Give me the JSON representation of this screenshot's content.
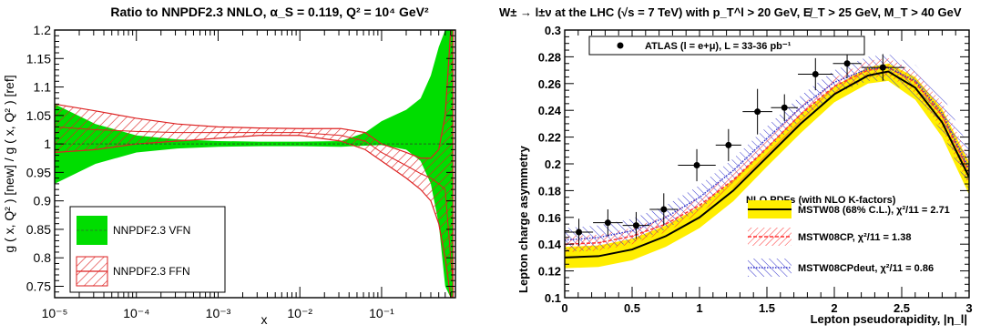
{
  "chart_data": [
    {
      "type": "line",
      "title": "Ratio to NNPDF2.3 NNLO, α_S = 0.119, Q² = 10⁴ GeV²",
      "xlabel": "x",
      "ylabel": "g ( x, Q² ) [new] / g ( x, Q² ) [ref]",
      "x_scale": "log",
      "xlim": [
        1e-05,
        0.8
      ],
      "ylim": [
        0.73,
        1.2
      ],
      "x_tick_labels": [
        {
          "v": 1e-05,
          "t": "10⁻⁵"
        },
        {
          "v": 0.0001,
          "t": "10⁻⁴"
        },
        {
          "v": 0.001,
          "t": "10⁻³"
        },
        {
          "v": 0.01,
          "t": "10⁻²"
        },
        {
          "v": 0.1,
          "t": "10⁻¹"
        }
      ],
      "y_tick_labels": [
        {
          "v": 0.75,
          "t": "0.75"
        },
        {
          "v": 0.8,
          "t": "0.8"
        },
        {
          "v": 0.85,
          "t": "0.85"
        },
        {
          "v": 0.9,
          "t": "0.9"
        },
        {
          "v": 0.95,
          "t": "0.95"
        },
        {
          "v": 1.0,
          "t": "1"
        },
        {
          "v": 1.05,
          "t": "1.05"
        },
        {
          "v": 1.1,
          "t": "1.1"
        },
        {
          "v": 1.15,
          "t": "1.15"
        },
        {
          "v": 1.2,
          "t": "1.2"
        }
      ],
      "legend_placement": "bottom-left",
      "series": [
        {
          "name": "NNPDF2.3 VFN",
          "style": "band",
          "color": "#00dd00",
          "x": [
            1e-05,
            3.16e-05,
            0.0001,
            0.000316,
            0.001,
            0.00316,
            0.01,
            0.0316,
            0.0631,
            0.1,
            0.2,
            0.3,
            0.4,
            0.5,
            0.6,
            0.7,
            0.75
          ],
          "lower": [
            0.93,
            0.965,
            0.985,
            0.992,
            0.995,
            0.996,
            0.996,
            0.995,
            0.997,
            0.998,
            0.99,
            0.97,
            0.93,
            0.86,
            0.75,
            0.73,
            0.73
          ],
          "upper": [
            1.07,
            1.035,
            1.015,
            1.008,
            1.005,
            1.004,
            1.004,
            1.005,
            1.02,
            1.04,
            1.06,
            1.08,
            1.12,
            1.17,
            1.2,
            1.2,
            1.2
          ],
          "central": [
            1.0,
            1.0,
            1.0,
            1.0,
            1.0,
            1.0,
            1.0,
            1.0,
            1.0,
            1.0,
            1.0,
            1.0,
            1.0,
            1.0,
            1.0,
            1.0,
            1.0
          ]
        },
        {
          "name": "NNPDF2.3 FFN",
          "style": "hatched-band",
          "color": "#dd2222",
          "x": [
            1e-05,
            3.16e-05,
            0.0001,
            0.000316,
            0.001,
            0.00316,
            0.01,
            0.0316,
            0.0631,
            0.1,
            0.2,
            0.3,
            0.4,
            0.5,
            0.6,
            0.7,
            0.75
          ],
          "lower": [
            0.985,
            0.99,
            1.0,
            1.005,
            1.01,
            1.015,
            1.015,
            1.005,
            0.99,
            0.97,
            0.94,
            0.92,
            0.9,
            0.86,
            0.8,
            0.73,
            0.73
          ],
          "upper": [
            1.07,
            1.058,
            1.045,
            1.035,
            1.03,
            1.028,
            1.027,
            1.027,
            1.02,
            1.0,
            0.985,
            0.975,
            0.975,
            0.99,
            1.05,
            1.2,
            1.2
          ],
          "central": [
            1.03,
            1.025,
            1.022,
            1.02,
            1.02,
            1.02,
            1.02,
            1.015,
            1.005,
            0.985,
            0.962,
            0.948,
            0.94,
            0.93,
            0.92,
            0.8,
            0.76
          ]
        }
      ]
    },
    {
      "type": "line",
      "title": "W± → l±ν at the LHC (√s = 7 TeV) with p_T^l > 20 GeV, E̸_T > 25 GeV, M_T > 40 GeV",
      "xlabel": "Lepton pseudorapidity, |η_l|",
      "ylabel": "Lepton charge asymmetry",
      "xlim": [
        0,
        3
      ],
      "ylim": [
        0.1,
        0.3
      ],
      "x_tick_labels": [
        {
          "v": 0,
          "t": "0"
        },
        {
          "v": 0.5,
          "t": "0.5"
        },
        {
          "v": 1,
          "t": "1"
        },
        {
          "v": 1.5,
          "t": "1.5"
        },
        {
          "v": 2,
          "t": "2"
        },
        {
          "v": 2.5,
          "t": "2.5"
        },
        {
          "v": 3,
          "t": "3"
        }
      ],
      "y_tick_labels": [
        {
          "v": 0.1,
          "t": "0.1"
        },
        {
          "v": 0.12,
          "t": "0.12"
        },
        {
          "v": 0.14,
          "t": "0.14"
        },
        {
          "v": 0.16,
          "t": "0.16"
        },
        {
          "v": 0.18,
          "t": "0.18"
        },
        {
          "v": 0.2,
          "t": "0.2"
        },
        {
          "v": 0.22,
          "t": "0.22"
        },
        {
          "v": 0.24,
          "t": "0.24"
        },
        {
          "v": 0.26,
          "t": "0.26"
        },
        {
          "v": 0.28,
          "t": "0.28"
        },
        {
          "v": 0.3,
          "t": "0.3"
        }
      ],
      "legend_top": "ATLAS (l = e+μ), L = 33-36 pb⁻¹",
      "legend_header": "NLO PDFs (with NLO K-factors)",
      "points": {
        "name": "ATLAS (l = e+μ), L = 33-36 pb⁻¹",
        "x": [
          0.105,
          0.32,
          0.53,
          0.735,
          0.98,
          1.215,
          1.43,
          1.63,
          1.86,
          2.095,
          2.36
        ],
        "xerr": [
          0.105,
          0.11,
          0.1,
          0.105,
          0.14,
          0.095,
          0.11,
          0.1,
          0.13,
          0.105,
          0.16
        ],
        "y": [
          0.149,
          0.156,
          0.154,
          0.166,
          0.199,
          0.214,
          0.239,
          0.242,
          0.267,
          0.275,
          0.272
        ],
        "yerr": [
          0.01,
          0.01,
          0.01,
          0.012,
          0.012,
          0.012,
          0.017,
          0.01,
          0.012,
          0.011,
          0.01
        ]
      },
      "series": [
        {
          "name": "MSTW08 (68% C.L.), χ²/11 = 2.71",
          "style": "band-line",
          "color": "#ffee00",
          "line_color": "#000000",
          "x": [
            0,
            0.25,
            0.5,
            0.75,
            1.0,
            1.25,
            1.5,
            1.75,
            2.0,
            2.25,
            2.4,
            2.6,
            2.8,
            3.0
          ],
          "central": [
            0.13,
            0.131,
            0.136,
            0.146,
            0.16,
            0.18,
            0.205,
            0.23,
            0.252,
            0.266,
            0.269,
            0.257,
            0.231,
            0.19
          ],
          "lower": [
            0.122,
            0.123,
            0.128,
            0.138,
            0.152,
            0.172,
            0.198,
            0.223,
            0.246,
            0.26,
            0.262,
            0.248,
            0.22,
            0.177
          ],
          "upper": [
            0.138,
            0.139,
            0.144,
            0.154,
            0.168,
            0.188,
            0.212,
            0.237,
            0.258,
            0.272,
            0.275,
            0.265,
            0.241,
            0.201
          ]
        },
        {
          "name": "MSTW08CP, χ²/11 = 1.38",
          "style": "hatched-band-dashed",
          "color": "#ff3333",
          "x": [
            0,
            0.25,
            0.5,
            0.75,
            1.0,
            1.25,
            1.5,
            1.75,
            2.0,
            2.25,
            2.4,
            2.6,
            2.8,
            3.0
          ],
          "central": [
            0.14,
            0.141,
            0.146,
            0.155,
            0.169,
            0.188,
            0.212,
            0.237,
            0.258,
            0.27,
            0.272,
            0.261,
            0.236,
            0.194
          ],
          "lower": [
            0.134,
            0.135,
            0.14,
            0.149,
            0.163,
            0.182,
            0.206,
            0.231,
            0.252,
            0.264,
            0.266,
            0.253,
            0.226,
            0.183
          ],
          "upper": [
            0.146,
            0.147,
            0.152,
            0.161,
            0.175,
            0.194,
            0.218,
            0.243,
            0.264,
            0.277,
            0.279,
            0.269,
            0.246,
            0.205
          ]
        },
        {
          "name": "MSTW08CPdeut, χ²/11 = 0.86",
          "style": "hatched-band-dotted",
          "color": "#3333cc",
          "x": [
            0,
            0.25,
            0.5,
            0.75,
            1.0,
            1.25,
            1.5,
            1.75,
            2.0,
            2.25,
            2.4,
            2.6,
            2.8,
            3.0
          ],
          "central": [
            0.143,
            0.145,
            0.15,
            0.16,
            0.175,
            0.195,
            0.219,
            0.242,
            0.261,
            0.271,
            0.272,
            0.262,
            0.238,
            0.196
          ],
          "lower": [
            0.134,
            0.136,
            0.141,
            0.151,
            0.166,
            0.186,
            0.21,
            0.233,
            0.252,
            0.262,
            0.262,
            0.25,
            0.224,
            0.18
          ],
          "upper": [
            0.152,
            0.154,
            0.159,
            0.169,
            0.184,
            0.204,
            0.228,
            0.251,
            0.27,
            0.28,
            0.282,
            0.274,
            0.252,
            0.212
          ]
        }
      ]
    }
  ]
}
